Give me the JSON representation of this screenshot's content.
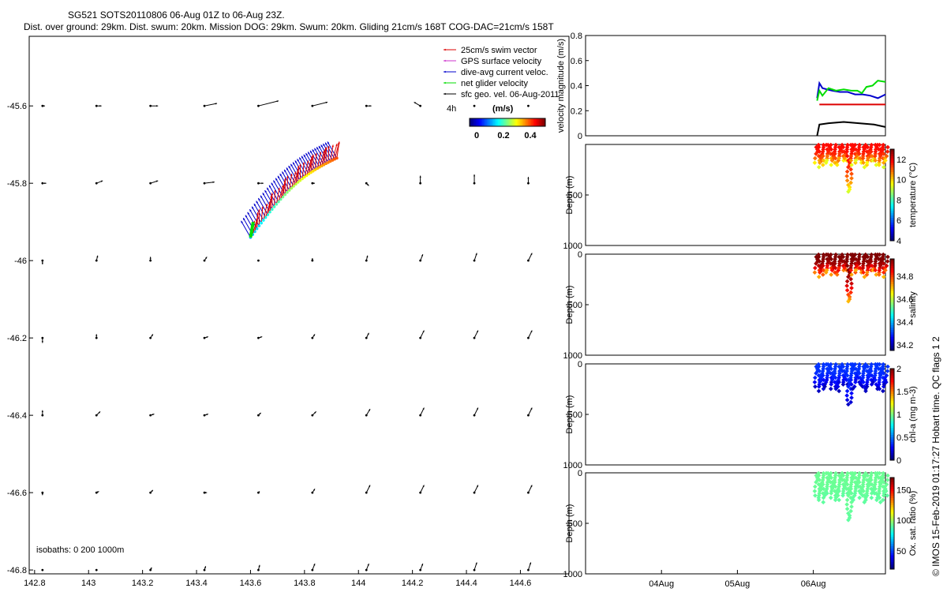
{
  "header": {
    "title": "SG521 SOTS20110806 06-Aug 01Z to 06-Aug 23Z.",
    "subtitle": "Dist. over ground: 29km. Dist. swum: 20km. Mission DOG: 29km. Swum: 20km. Gliding 21cm/s 168T COG-DAC=21cm/s 158T"
  },
  "side_text": "© IMOS 15-Feb-2019 01:17:27 Hobart time. QC flags 1  2",
  "chart_data": [
    {
      "type": "scatter",
      "id": "map",
      "xlim": [
        142.78,
        144.78
      ],
      "ylim": [
        -46.81,
        -45.42
      ],
      "xticks": [
        142.8,
        143,
        143.2,
        143.4,
        143.6,
        143.8,
        144,
        144.2,
        144.4,
        144.6
      ],
      "xtick_labels": [
        "142.8",
        "143",
        "143.2",
        "143.4",
        "143.6",
        "143.8",
        "144",
        "144.2",
        "144.4",
        "144.6"
      ],
      "yticks": [
        -45.6,
        -45.8,
        -46,
        -46.2,
        -46.4,
        -46.6,
        -46.8
      ],
      "ytick_labels": [
        "-45.6",
        "-45.8",
        "-46",
        "-46.2",
        "-46.4",
        "-46.6",
        "-46.8"
      ],
      "legend": {
        "position": "top-right",
        "entries": [
          {
            "label": "25cm/s swim vector",
            "color": "#dd0000"
          },
          {
            "label": "GPS surface velocity",
            "color": "#cc33cc"
          },
          {
            "label": "dive-avg current veloc.",
            "color": "#0000cc"
          },
          {
            "label": "net glider velocity",
            "color": "#00dd00"
          },
          {
            "label": "sfc geo. vel. 06-Aug-2011",
            "color": "#000000"
          }
        ],
        "note": "4h",
        "colorbar_title": "(m/s)",
        "colorbar_ticks": [
          "0",
          "0.2",
          "0.4"
        ]
      },
      "annotation": "isobaths: 0   200   1000m",
      "geo_grid": {
        "lons": [
          142.8,
          143,
          143.2,
          143.4,
          143.6,
          143.8,
          144,
          144.2,
          144.4,
          144.6
        ],
        "lats": [
          -45.6,
          -45.8,
          -46,
          -46.2,
          -46.4,
          -46.6,
          -46.8
        ],
        "u": [
          [
            0.02,
            0.04,
            0.06,
            0.1,
            0.16,
            0.12,
            0.04,
            -0.05,
            0,
            0
          ],
          [
            0.03,
            0.05,
            0.06,
            0.08,
            0.04,
            0.02,
            0.02,
            0.0,
            0.0,
            0.0
          ],
          [
            0.0,
            0.01,
            0.0,
            0.02,
            0.0,
            0.0,
            0.01,
            0.02,
            0.02,
            0.03
          ],
          [
            0.0,
            0.0,
            0.02,
            0.03,
            0.03,
            0.02,
            0.02,
            0.03,
            0.03,
            0.03
          ],
          [
            0.0,
            0.03,
            0.03,
            0.03,
            0.02,
            0.03,
            0.03,
            0.03,
            0.03,
            0.03
          ],
          [
            0.0,
            0.02,
            0.02,
            0.02,
            0.01,
            0.02,
            0.03,
            0.03,
            0.03,
            0.03
          ],
          [
            0.0,
            0.0,
            0.01,
            0.01,
            0.01,
            0.02,
            0.02,
            0.02,
            0.02,
            0.02
          ]
        ],
        "v": [
          [
            0.0,
            0.0,
            0.0,
            0.02,
            0.04,
            0.03,
            0.0,
            0.03,
            0,
            0
          ],
          [
            0.0,
            0.02,
            0.02,
            0.01,
            0.0,
            0.0,
            -0.02,
            0.06,
            0.07,
            0.05
          ],
          [
            -0.03,
            0.04,
            0.03,
            0.03,
            0.0,
            0.02,
            0.04,
            0.05,
            0.06,
            0.06
          ],
          [
            -0.04,
            0.03,
            0.03,
            0.01,
            0.01,
            0.03,
            0.04,
            0.06,
            0.06,
            0.06
          ],
          [
            0.04,
            0.03,
            0.01,
            0.01,
            0.02,
            0.03,
            0.05,
            0.06,
            0.06,
            0.06
          ],
          [
            -0.02,
            0.01,
            0.02,
            0.0,
            0.01,
            0.03,
            0.06,
            0.06,
            0.06,
            0.06
          ],
          [
            0.0,
            0.0,
            0.02,
            0.03,
            0.04,
            0.05,
            0.05,
            0.05,
            0.06,
            0.06
          ]
        ]
      },
      "track": {
        "start": [
          143.92,
          -45.735
        ],
        "end": [
          143.6,
          -45.94
        ],
        "dives": 40,
        "current_vector": [
          -0.04,
          0.07
        ],
        "swim_vector": [
          0.01,
          0.07
        ],
        "net_segment": [
          [
            143.61,
            -45.9
          ],
          [
            143.6,
            -45.94
          ]
        ]
      }
    },
    {
      "type": "line",
      "id": "velocity",
      "ylabel": "velocity magnitude (m/s)",
      "xlim": [
        0,
        3.95
      ],
      "ylim": [
        0,
        0.8
      ],
      "yticks": [
        0,
        0.2,
        0.4,
        0.6,
        0.8
      ],
      "ytick_labels": [
        "0",
        "0.2",
        "0.4",
        "0.6",
        "0.8"
      ],
      "series": [
        {
          "color": "#0000cc",
          "x": [
            3.05,
            3.08,
            3.12,
            3.18,
            3.25,
            3.35,
            3.45,
            3.55,
            3.65,
            3.75,
            3.85,
            3.95
          ],
          "y": [
            0.3,
            0.42,
            0.38,
            0.37,
            0.36,
            0.35,
            0.35,
            0.33,
            0.33,
            0.32,
            0.3,
            0.33
          ]
        },
        {
          "color": "#00dd00",
          "x": [
            3.05,
            3.08,
            3.12,
            3.2,
            3.3,
            3.4,
            3.5,
            3.58,
            3.64,
            3.7,
            3.78,
            3.85,
            3.95
          ],
          "y": [
            0.28,
            0.36,
            0.32,
            0.38,
            0.36,
            0.37,
            0.36,
            0.36,
            0.34,
            0.39,
            0.4,
            0.44,
            0.43
          ]
        },
        {
          "color": "#dd0000",
          "x": [
            3.08,
            3.95
          ],
          "y": [
            0.25,
            0.25
          ]
        },
        {
          "color": "#000000",
          "x": [
            3.05,
            3.08,
            3.2,
            3.4,
            3.6,
            3.8,
            3.95
          ],
          "y": [
            0.0,
            0.09,
            0.1,
            0.11,
            0.1,
            0.09,
            0.07
          ]
        }
      ]
    },
    {
      "type": "scatter",
      "id": "temperature",
      "ylabel": "Depth (m)",
      "clabel": "temperature (°C)",
      "ylim": [
        1000,
        0
      ],
      "ytick_labels": [
        "1000",
        "500"
      ],
      "clim": [
        4,
        13
      ],
      "cticks": [
        "12",
        "10",
        "8",
        "6",
        "4"
      ],
      "profile": {
        "start": 3.05,
        "end": 3.95,
        "dives": 18,
        "maxdepth": 230,
        "deep_dive": 3.48,
        "deep_depth": 470,
        "surface_value": 11.8,
        "deep_value": 9.2
      }
    },
    {
      "type": "scatter",
      "id": "salinity",
      "ylabel": "Depth (m)",
      "clabel": "salinity",
      "ylim": [
        1000,
        0
      ],
      "ytick_labels": [
        "1000",
        "500",
        "0"
      ],
      "clim": [
        34.15,
        34.95
      ],
      "cticks": [
        "34.8",
        "34.6",
        "34.4",
        "34.2"
      ],
      "profile": {
        "start": 3.05,
        "end": 3.95,
        "dives": 18,
        "maxdepth": 230,
        "deep_dive": 3.48,
        "deep_depth": 470,
        "surface_value": 34.95,
        "deep_value": 34.7
      }
    },
    {
      "type": "scatter",
      "id": "chla",
      "ylabel": "Depth (m)",
      "clabel": "chl-a (mg m-3)",
      "ylim": [
        1000,
        0
      ],
      "ytick_labels": [
        "1000",
        "500",
        "0"
      ],
      "clim": [
        0,
        2
      ],
      "cticks": [
        "2",
        "1.5",
        "1",
        "0.5",
        "0"
      ],
      "profile": {
        "start": 3.05,
        "end": 3.95,
        "dives": 18,
        "maxdepth": 280,
        "deep_dive": 3.48,
        "deep_depth": 420,
        "surface_value": 0.35,
        "deep_value": 0.1
      }
    },
    {
      "type": "scatter",
      "id": "oxygen",
      "ylabel": "Depth (m)",
      "clabel": "Ox. sat. ratio (%)",
      "ylim": [
        1000,
        0
      ],
      "ytick_labels": [
        "1000",
        "500",
        "0"
      ],
      "clim": [
        20,
        170
      ],
      "cticks": [
        "150",
        "100",
        "50"
      ],
      "xlim": [
        0,
        3.95
      ],
      "xticks": [
        1,
        2,
        3
      ],
      "xtick_labels": [
        "04Aug",
        "05Aug",
        "06Aug"
      ],
      "profile": {
        "start": 3.05,
        "end": 3.95,
        "dives": 18,
        "maxdepth": 300,
        "deep_dive": 3.48,
        "deep_depth": 470,
        "surface_value": 92,
        "deep_value": 90
      }
    }
  ]
}
